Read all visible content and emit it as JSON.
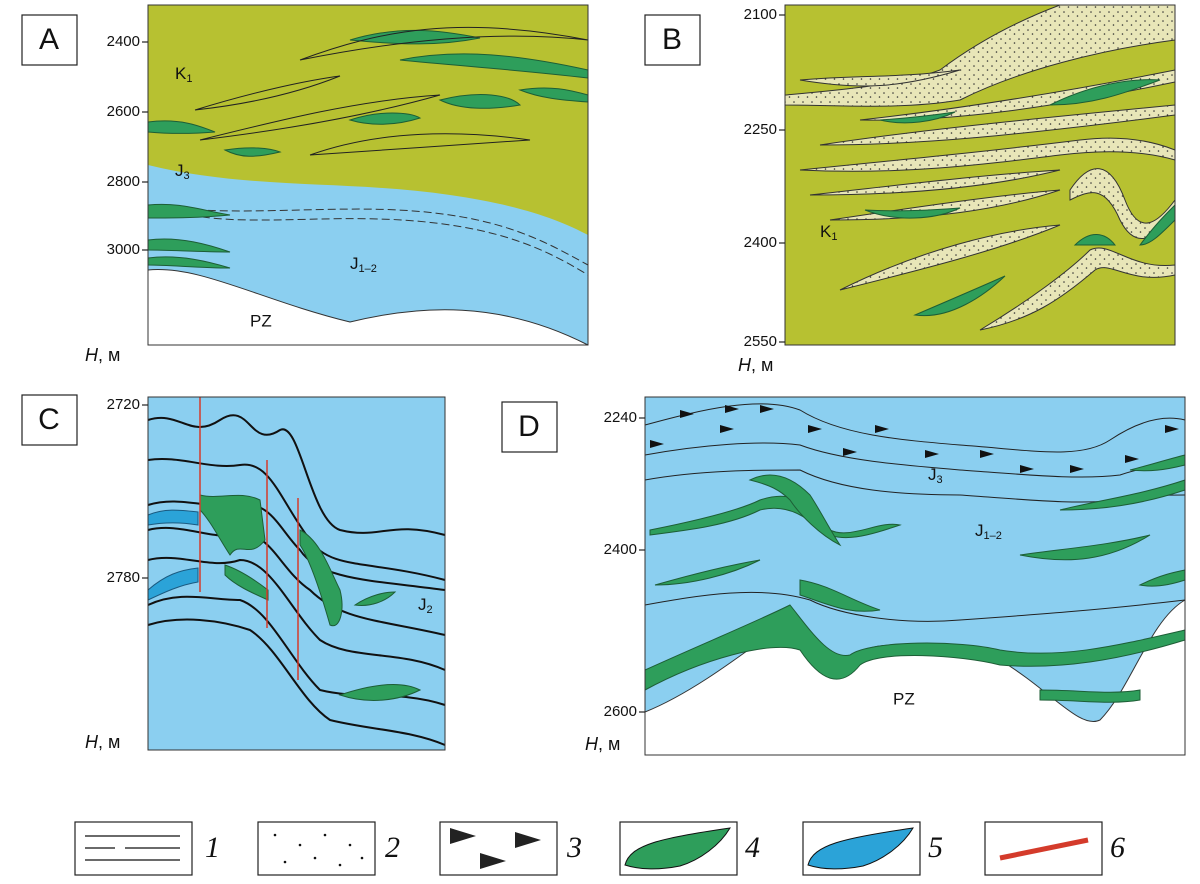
{
  "panels": [
    {
      "label": "A",
      "ticks": [
        2400,
        2600,
        2800,
        3000
      ],
      "units": [
        {
          "main": "K",
          "sub": "1"
        },
        {
          "main": "J",
          "sub": "3"
        },
        {
          "main": "J",
          "sub": "1–2"
        },
        {
          "main": "PZ"
        }
      ],
      "axis_label": {
        "var": "H",
        "unit": ", м"
      }
    },
    {
      "label": "B",
      "ticks": [
        2100,
        2250,
        2400,
        2550
      ],
      "units": [
        {
          "main": "K",
          "sub": "1"
        }
      ],
      "axis_label": {
        "var": "H",
        "unit": ", м"
      }
    },
    {
      "label": "C",
      "ticks": [
        2720,
        2780
      ],
      "units": [
        {
          "main": "J",
          "sub": "2"
        }
      ],
      "axis_label": {
        "var": "H",
        "unit": ", м"
      }
    },
    {
      "label": "D",
      "ticks": [
        2240,
        2400,
        2600
      ],
      "units": [
        {
          "main": "J",
          "sub": "3"
        },
        {
          "main": "J",
          "sub": "1–2"
        },
        {
          "main": "PZ"
        }
      ],
      "axis_label": {
        "var": "H",
        "unit": ", м"
      }
    }
  ],
  "legend": [
    "1",
    "2",
    "3",
    "4",
    "5",
    "6"
  ]
}
